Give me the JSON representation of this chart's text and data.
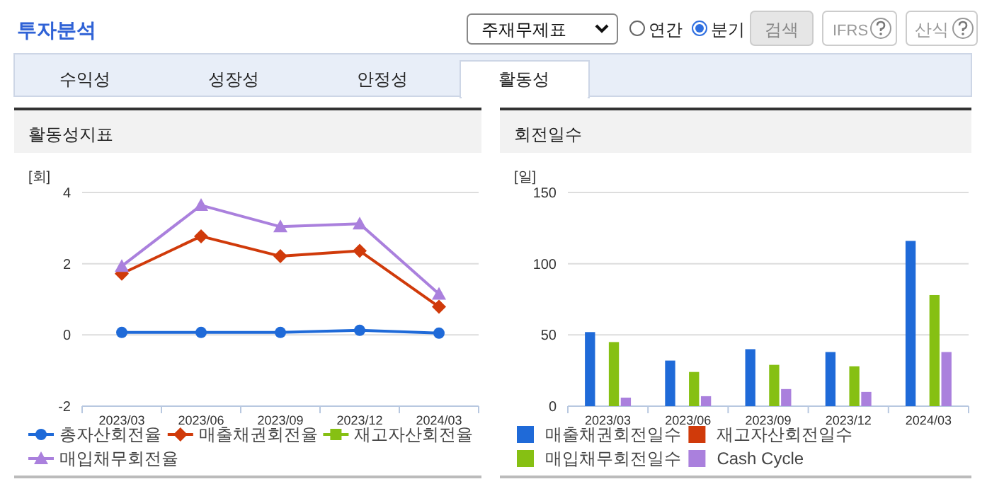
{
  "chart_data": [
    {
      "type": "other",
      "title": "투자분석",
      "annotations": [
        "주재무제표",
        "연간",
        "분기",
        "검색",
        "IFRS",
        "산식",
        "수익성",
        "성장성",
        "안정성",
        "활동성"
      ]
    },
    {
      "type": "line",
      "title": "활동성지표",
      "ylabel": "[회]",
      "categories": [
        "2023/03",
        "2023/06",
        "2023/09",
        "2023/12",
        "2024/03"
      ],
      "ylim": [
        -2,
        4
      ],
      "yticks": [
        -2,
        0,
        2,
        4
      ],
      "grid": "y",
      "legend": "bottom",
      "series": [
        {
          "name": "총자산회전율",
          "color": "#1f6ad8",
          "marker": "circle",
          "values": [
            0.07,
            0.07,
            0.07,
            0.13,
            0.05
          ]
        },
        {
          "name": "매출채권회전율",
          "color": "#d03a0a",
          "marker": "diamond",
          "values": [
            1.72,
            2.77,
            2.21,
            2.36,
            0.79
          ]
        },
        {
          "name": "재고자산회전율",
          "color": "#86c013",
          "marker": "square",
          "values": [
            null,
            null,
            null,
            null,
            null
          ]
        },
        {
          "name": "매입채무회전율",
          "color": "#aa80dd",
          "marker": "triangle",
          "values": [
            1.93,
            3.64,
            3.04,
            3.12,
            1.15
          ]
        }
      ]
    },
    {
      "type": "bar",
      "title": "회전일수",
      "ylabel": "[일]",
      "categories": [
        "2023/03",
        "2023/06",
        "2023/09",
        "2023/12",
        "2024/03"
      ],
      "ylim": [
        0,
        150
      ],
      "yticks": [
        0,
        50,
        100,
        150
      ],
      "grid": "y",
      "legend": "bottom",
      "series": [
        {
          "name": "매출채권회전일수",
          "color": "#1f6ad8",
          "values": [
            52,
            32,
            40,
            38,
            116
          ]
        },
        {
          "name": "재고자산회전일수",
          "color": "#d03a0a",
          "values": [
            null,
            null,
            null,
            null,
            null
          ]
        },
        {
          "name": "매입채무회전일수",
          "color": "#86c013",
          "values": [
            45,
            24,
            29,
            28,
            78
          ]
        },
        {
          "name": "Cash Cycle",
          "color": "#aa80dd",
          "values": [
            6,
            7,
            12,
            10,
            38
          ]
        }
      ]
    }
  ]
}
